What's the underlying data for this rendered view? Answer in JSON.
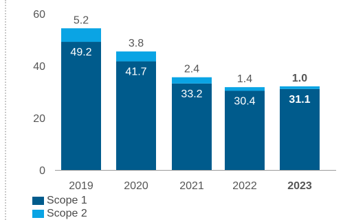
{
  "chart_data": {
    "type": "bar",
    "stacked": true,
    "categories": [
      "2019",
      "2020",
      "2021",
      "2022",
      "2023"
    ],
    "highlight_category": "2023",
    "series": [
      {
        "name": "Scope 1",
        "values": [
          49.2,
          41.7,
          33.2,
          30.4,
          31.1
        ],
        "color": "#005b8c"
      },
      {
        "name": "Scope 2",
        "values": [
          5.2,
          3.8,
          2.4,
          1.4,
          1.0
        ],
        "color": "#0aa4e4"
      }
    ],
    "y_ticks": [
      0,
      20,
      40,
      60
    ],
    "ylim": [
      0,
      60
    ],
    "grid": false,
    "legend_placement": "bottom-left",
    "colors": {
      "axis_text": "#555555",
      "axis_line": "#9a9a9a",
      "inner_label": "#ffffff",
      "outer_label": "#555555"
    }
  }
}
